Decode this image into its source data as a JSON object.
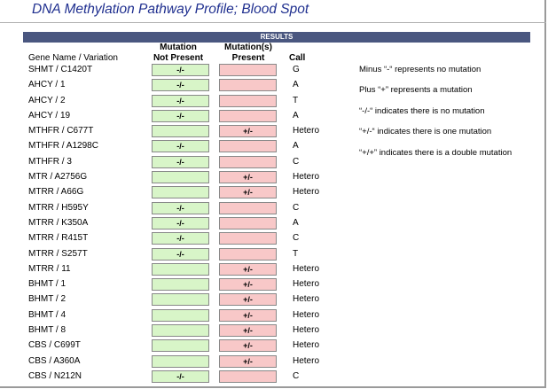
{
  "title": "DNA Methylation Pathway Profile; Blood Spot",
  "results_label": "RESULTS",
  "headers": {
    "gene": "Gene Name / Variation",
    "not_present_line1": "Mutation",
    "not_present_line2": "Not Present",
    "present_line1": "Mutation(s)",
    "present_line2": "Present",
    "call": "Call"
  },
  "rows": [
    {
      "gene": "SHMT / C1420T",
      "not_present": "-/-",
      "present": "",
      "call": "G"
    },
    {
      "gene": "AHCY / 1",
      "not_present": "-/-",
      "present": "",
      "call": "A"
    },
    {
      "gene": "AHCY / 2",
      "not_present": "-/-",
      "present": "",
      "call": "T"
    },
    {
      "gene": "AHCY / 19",
      "not_present": "-/-",
      "present": "",
      "call": "A"
    },
    {
      "gene": "MTHFR / C677T",
      "not_present": "",
      "present": "+/-",
      "call": "Hetero"
    },
    {
      "gene": "MTHFR / A1298C",
      "not_present": "-/-",
      "present": "",
      "call": "A"
    },
    {
      "gene": "MTHFR / 3",
      "not_present": "-/-",
      "present": "",
      "call": "C"
    },
    {
      "gene": "MTR / A2756G",
      "not_present": "",
      "present": "+/-",
      "call": "Hetero"
    },
    {
      "gene": "MTRR / A66G",
      "not_present": "",
      "present": "+/-",
      "call": "Hetero"
    },
    {
      "gene": "MTRR / H595Y",
      "not_present": "-/-",
      "present": "",
      "call": "C"
    },
    {
      "gene": "MTRR / K350A",
      "not_present": "-/-",
      "present": "",
      "call": "A"
    },
    {
      "gene": "MTRR / R415T",
      "not_present": "-/-",
      "present": "",
      "call": "C"
    },
    {
      "gene": "MTRR / S257T",
      "not_present": "-/-",
      "present": "",
      "call": "T"
    },
    {
      "gene": "MTRR / 11",
      "not_present": "",
      "present": "+/-",
      "call": "Hetero"
    },
    {
      "gene": "BHMT / 1",
      "not_present": "",
      "present": "+/-",
      "call": "Hetero"
    },
    {
      "gene": "BHMT / 2",
      "not_present": "",
      "present": "+/-",
      "call": "Hetero"
    },
    {
      "gene": "BHMT / 4",
      "not_present": "",
      "present": "+/-",
      "call": "Hetero"
    },
    {
      "gene": "BHMT / 8",
      "not_present": "",
      "present": "+/-",
      "call": "Hetero"
    },
    {
      "gene": "CBS / C699T",
      "not_present": "",
      "present": "+/-",
      "call": "Hetero"
    },
    {
      "gene": "CBS / A360A",
      "not_present": "",
      "present": "+/-",
      "call": "Hetero"
    },
    {
      "gene": "CBS / N212N",
      "not_present": "-/-",
      "present": "",
      "call": "C"
    }
  ],
  "legend": [
    "Minus “-“ represents no mutation",
    "Plus “+” represents a mutation",
    "“-/-“ indicates there is no mutation",
    "“+/-“ indicates there is one mutation",
    "“+/+” indicates there is a double mutation"
  ],
  "colors": {
    "title": "#1f2f8f",
    "results_bar": "#4a5780",
    "not_present_fill": "#d8f5c8",
    "present_fill": "#f8c8c8"
  }
}
